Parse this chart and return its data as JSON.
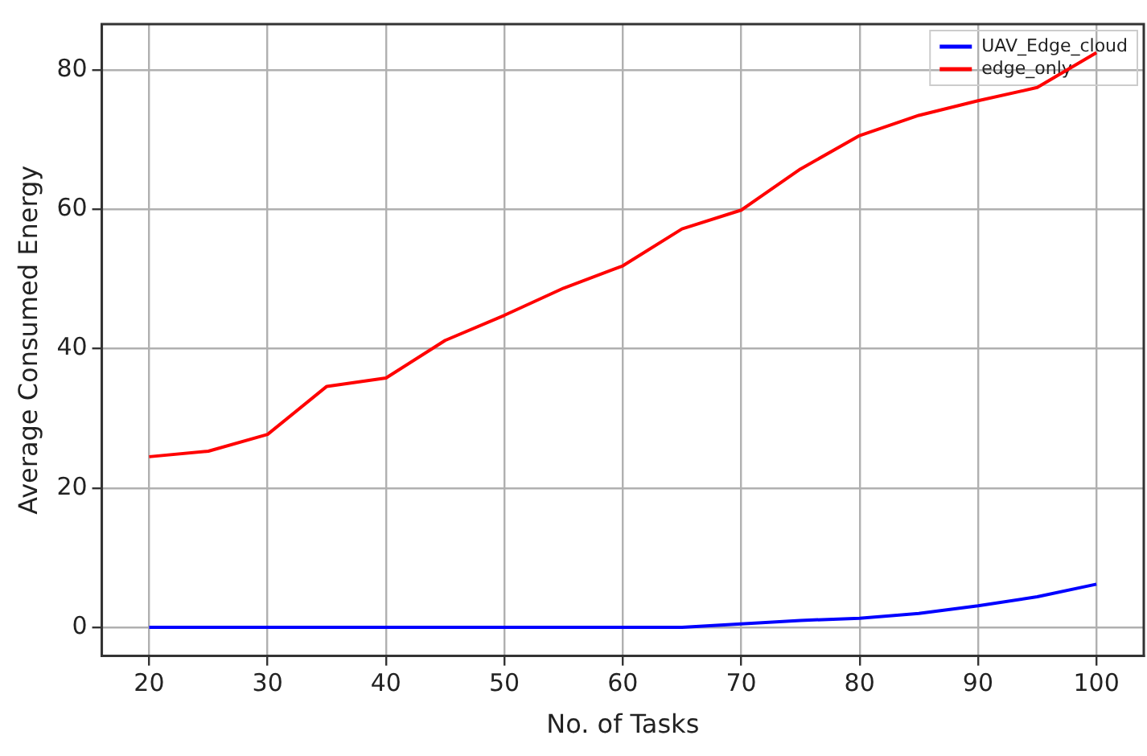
{
  "chart_data": {
    "type": "line",
    "xlabel": "No. of Tasks",
    "ylabel": "Average Consumed Energy",
    "x": [
      20,
      25,
      30,
      35,
      40,
      45,
      50,
      55,
      60,
      65,
      70,
      75,
      80,
      85,
      90,
      95,
      100
    ],
    "series": [
      {
        "name": "UAV_Edge_cloud",
        "color": "#0000ff",
        "values": [
          0,
          0,
          0,
          0,
          0,
          0,
          0,
          0,
          0,
          0,
          0.5,
          1.0,
          1.3,
          2.0,
          3.1,
          4.4,
          6.2
        ]
      },
      {
        "name": "edge_only",
        "color": "#ff0000",
        "values": [
          24.5,
          25.3,
          27.7,
          34.6,
          35.8,
          41.2,
          44.8,
          48.7,
          51.9,
          57.2,
          59.9,
          65.8,
          70.6,
          73.5,
          75.6,
          77.5,
          82.5
        ]
      }
    ],
    "xlim": [
      16,
      104
    ],
    "ylim": [
      -4.1,
      86.6
    ],
    "xticks": [
      20,
      30,
      40,
      50,
      60,
      70,
      80,
      90,
      100
    ],
    "yticks": [
      0,
      20,
      40,
      60,
      80
    ],
    "grid": true,
    "legend": "top right",
    "marker": "none",
    "line_style": "solid"
  }
}
